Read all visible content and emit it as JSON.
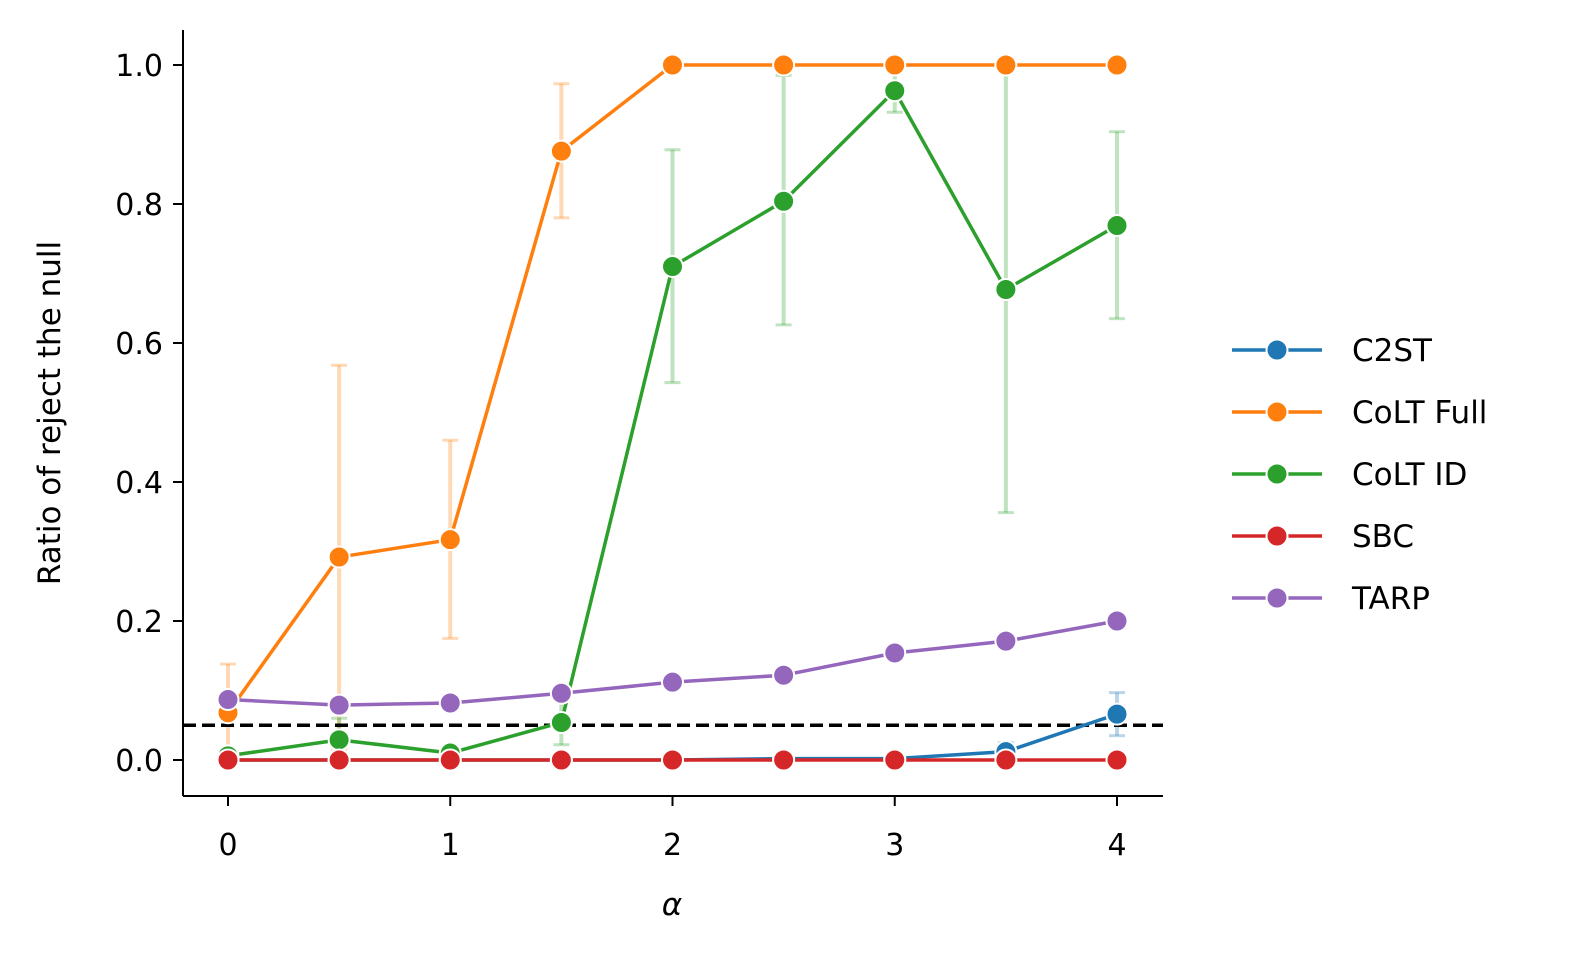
{
  "chart_data": {
    "type": "line",
    "title": "",
    "xlabel": "α",
    "ylabel": "Ratio of reject the null",
    "xlim": [
      -0.2,
      4.2
    ],
    "ylim": [
      -0.05,
      1.05
    ],
    "xticks": [
      0,
      1,
      2,
      3,
      4
    ],
    "xtick_labels": [
      "0",
      "1",
      "2",
      "3",
      "4"
    ],
    "yticks": [
      0.0,
      0.2,
      0.4,
      0.6,
      0.8,
      1.0
    ],
    "ytick_labels": [
      "0.0",
      "0.2",
      "0.4",
      "0.6",
      "0.8",
      "1.0"
    ],
    "grid": false,
    "legend_position": "right",
    "reference_line": {
      "y": 0.05,
      "style": "dashed",
      "color": "#000000"
    },
    "x": [
      0,
      0.5,
      1,
      1.5,
      2,
      2.5,
      3,
      3.5,
      4
    ],
    "series": [
      {
        "name": "C2ST",
        "color": "#1f77b4",
        "values": [
          0.0,
          0.0,
          0.0,
          0.0,
          0.0,
          0.002,
          0.002,
          0.012,
          0.066
        ],
        "err_low": [
          0.0,
          0.0,
          0.0,
          0.0,
          0.0,
          0.0,
          0.0,
          0.0,
          0.035
        ],
        "err_high": [
          0.0,
          0.0,
          0.0,
          0.0,
          0.0,
          0.005,
          0.005,
          0.025,
          0.097
        ]
      },
      {
        "name": "CoLT Full",
        "color": "#ff7f0e",
        "values": [
          0.068,
          0.292,
          0.317,
          0.876,
          1.0,
          1.0,
          1.0,
          1.0,
          1.0
        ],
        "err_low": [
          0.0,
          0.015,
          0.175,
          0.78,
          1.0,
          1.0,
          1.0,
          1.0,
          1.0
        ],
        "err_high": [
          0.138,
          0.568,
          0.46,
          0.973,
          1.0,
          1.0,
          1.0,
          1.0,
          1.0
        ]
      },
      {
        "name": "CoLT ID",
        "color": "#2ca02c",
        "values": [
          0.006,
          0.029,
          0.01,
          0.054,
          0.71,
          0.804,
          0.963,
          0.677,
          0.769
        ],
        "err_low": [
          0.0,
          0.0,
          0.0,
          0.022,
          0.543,
          0.626,
          0.932,
          0.356,
          0.635
        ],
        "err_high": [
          0.015,
          0.06,
          0.02,
          0.09,
          0.878,
          0.985,
          0.995,
          0.998,
          0.904
        ]
      },
      {
        "name": "SBC",
        "color": "#d62728",
        "values": [
          0.0,
          0.0,
          0.0,
          0.0,
          0.0,
          0.0,
          0.0,
          0.0,
          0.0
        ]
      },
      {
        "name": "TARP",
        "color": "#9467bd",
        "values": [
          0.087,
          0.079,
          0.082,
          0.096,
          0.112,
          0.122,
          0.154,
          0.171,
          0.2
        ]
      }
    ]
  }
}
